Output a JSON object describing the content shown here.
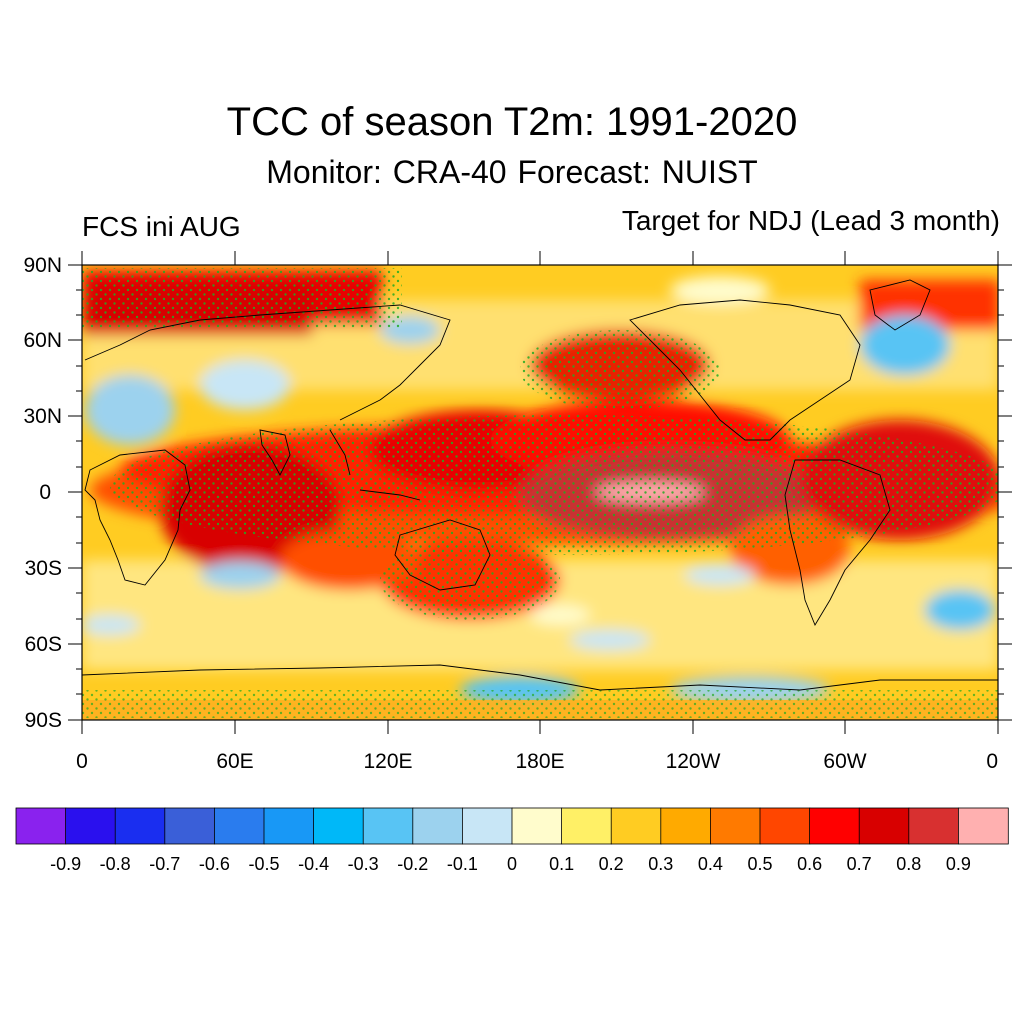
{
  "map": {
    "title": "TCC of season T2m: 1991-2020",
    "subtitle": "Monitor: CRA-40   Forecast: NUIST",
    "left_label": "FCS ini AUG",
    "right_label": "Target for NDJ (Lead 3 month)",
    "lat_labels": [
      "90N",
      "60N",
      "30N",
      "0",
      "30S",
      "60S",
      "90S"
    ],
    "lon_labels": [
      "0",
      "60E",
      "120E",
      "180E",
      "120W",
      "60W",
      "0"
    ],
    "colors": {
      "significance_dots": "#22aa22",
      "coastline": "#000000"
    }
  },
  "colorbar": {
    "labels": [
      "-0.9",
      "-0.8",
      "-0.7",
      "-0.6",
      "-0.5",
      "-0.4",
      "-0.3",
      "-0.2",
      "-0.1",
      "0",
      "0.1",
      "0.2",
      "0.3",
      "0.4",
      "0.5",
      "0.6",
      "0.7",
      "0.8",
      "0.9"
    ],
    "colors": [
      "#8a22ee",
      "#2a10ee",
      "#1a2ef0",
      "#3a5fd8",
      "#2a7cee",
      "#1898f6",
      "#00b8f8",
      "#58c4f4",
      "#9cd2ee",
      "#c8e6f6",
      "#fffccc",
      "#fff066",
      "#ffcc22",
      "#ffaa00",
      "#ff7a00",
      "#ff4600",
      "#ff0000",
      "#d80000",
      "#d83030",
      "#ffb0b0"
    ]
  }
}
